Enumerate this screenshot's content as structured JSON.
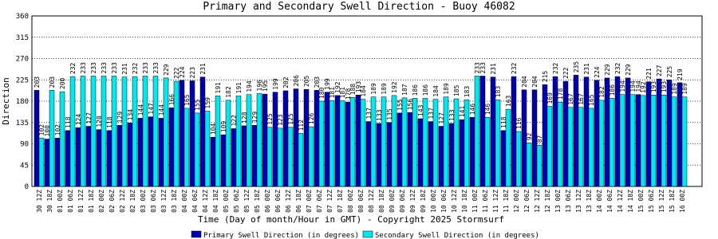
{
  "chart_data": {
    "type": "bar",
    "title": "Primary and Secondary Swell Direction - Buoy 46082",
    "x_label": "Time (Day of month/Hour in GMT) - Copyright 2025 Stormsurf",
    "y_label": "Direction",
    "categories": [
      "30 12Z",
      "30 18Z",
      "01 00Z",
      "01 06Z",
      "01 12Z",
      "01 18Z",
      "02 00Z",
      "02 06Z",
      "02 12Z",
      "02 18Z",
      "03 00Z",
      "03 06Z",
      "03 12Z",
      "03 18Z",
      "04 00Z",
      "04 06Z",
      "04 12Z",
      "04 18Z",
      "05 00Z",
      "05 06Z",
      "05 12Z",
      "05 18Z",
      "06 00Z",
      "06 06Z",
      "06 12Z",
      "06 18Z",
      "07 00Z",
      "07 06Z",
      "07 12Z",
      "07 18Z",
      "08 00Z",
      "08 06Z",
      "08 12Z",
      "08 18Z",
      "09 00Z",
      "09 06Z",
      "09 12Z",
      "09 18Z",
      "10 00Z",
      "10 06Z",
      "10 12Z",
      "10 18Z",
      "11 00Z",
      "11 06Z",
      "11 12Z",
      "11 18Z",
      "12 00Z",
      "12 06Z",
      "12 12Z",
      "12 18Z",
      "13 00Z",
      "13 06Z",
      "13 12Z",
      "13 18Z",
      "14 00Z",
      "14 06Z",
      "14 12Z",
      "14 18Z",
      "15 00Z",
      "15 06Z",
      "15 12Z",
      "15 18Z",
      "16 00Z"
    ],
    "series": [
      {
        "name": "Primary Swell Direction (in degrees)",
        "color": "#0000b0",
        "values": [
          203,
          100,
          102,
          118,
          124,
          127,
          120,
          118,
          129,
          134,
          144,
          147,
          144,
          166,
          224,
          223,
          231,
          104,
          109,
          122,
          128,
          129,
          195,
          199,
          202,
          206,
          205,
          203,
          199,
          192,
          178,
          193,
          137,
          133,
          135,
          155,
          156,
          143,
          137,
          127,
          133,
          141,
          146,
          233,
          231,
          118,
          232,
          204,
          204,
          215,
          232,
          222,
          235,
          231,
          224,
          229,
          232,
          229,
          194,
          221,
          227,
          225,
          219
        ]
      },
      {
        "name": "Secondary Swell Direction (in degrees)",
        "color": "#00e8f0",
        "values": [
          102,
          203,
          200,
          232,
          233,
          233,
          233,
          233,
          231,
          232,
          233,
          233,
          229,
          222,
          165,
          155,
          159,
          191,
          182,
          191,
          194,
          196,
          125,
          123,
          125,
          112,
          126,
          180,
          181,
          181,
          188,
          184,
          189,
          189,
          192,
          187,
          186,
          186,
          184,
          189,
          185,
          183,
          233,
          146,
          183,
          163,
          116,
          92,
          87,
          169,
          178,
          167,
          167,
          165,
          182,
          186,
          194,
          194,
          192,
          193,
          193,
          189,
          189
        ]
      }
    ],
    "ylim": [
      0,
      360
    ],
    "yticks": [
      0,
      45,
      90,
      135,
      180,
      225,
      270,
      315,
      360
    ],
    "grid": true
  }
}
